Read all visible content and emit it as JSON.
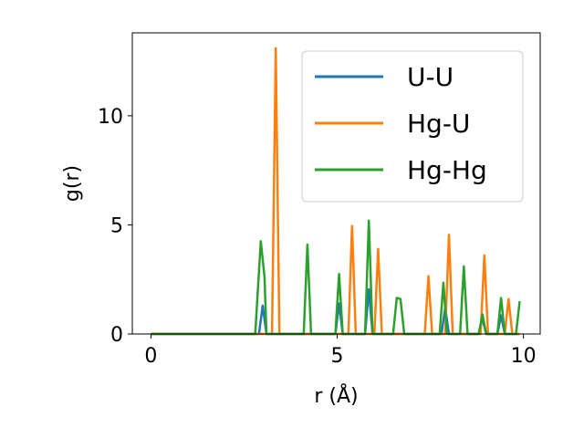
{
  "chart_data": {
    "type": "line",
    "title": "",
    "xlabel": "r (Å)",
    "ylabel": "g(r)",
    "xlim": [
      -0.5,
      10.45
    ],
    "ylim": [
      0,
      13.8
    ],
    "xticks": [
      0,
      5,
      10
    ],
    "yticks": [
      0,
      5,
      10
    ],
    "xtick_labels": [
      "0",
      "5",
      "10"
    ],
    "ytick_labels": [
      "0",
      "5",
      "10"
    ],
    "grid": false,
    "legend_position": "top-right",
    "series": [
      {
        "name": "U-U",
        "color": "#1f77b4",
        "x": [
          0,
          2.9,
          3.0,
          3.1,
          4.95,
          5.05,
          5.15,
          5.75,
          5.85,
          5.95,
          7.8,
          7.9,
          8.0,
          8.8,
          8.9,
          9.0,
          9.3,
          9.4,
          9.5,
          9.9
        ],
        "y": [
          0,
          0,
          1.3,
          0,
          0,
          1.4,
          0,
          0,
          2.05,
          0,
          0,
          1.2,
          0,
          0,
          0.7,
          0,
          0,
          0.85,
          0,
          0
        ]
      },
      {
        "name": "Hg-U",
        "color": "#ff7f0e",
        "x": [
          0,
          3.25,
          3.35,
          3.45,
          5.3,
          5.4,
          5.5,
          6.0,
          6.1,
          6.2,
          7.35,
          7.45,
          7.55,
          7.9,
          8.0,
          8.1,
          8.85,
          8.95,
          9.05,
          9.5,
          9.6,
          9.7,
          9.9
        ],
        "y": [
          0,
          0,
          13.1,
          0,
          0,
          4.95,
          0,
          0,
          3.9,
          0,
          0,
          2.65,
          0,
          0,
          4.55,
          0,
          0,
          3.6,
          0,
          0,
          1.6,
          0,
          0
        ]
      },
      {
        "name": "Hg-Hg",
        "color": "#2ca02c",
        "x": [
          0,
          2.8,
          2.95,
          3.05,
          3.1,
          4.1,
          4.2,
          4.3,
          4.95,
          5.05,
          5.15,
          5.75,
          5.85,
          5.95,
          6.5,
          6.6,
          6.7,
          6.8,
          7.75,
          7.85,
          7.95,
          8.3,
          8.4,
          8.5,
          8.8,
          8.9,
          9.0,
          9.3,
          9.4,
          9.5,
          9.8,
          9.9
        ],
        "y": [
          0,
          0,
          4.25,
          2.6,
          0,
          0,
          4.1,
          0,
          0,
          2.75,
          0,
          0,
          5.2,
          0,
          0,
          1.65,
          1.6,
          0,
          0,
          2.35,
          0,
          0,
          3.1,
          0,
          0,
          0.9,
          0,
          0,
          1.65,
          0,
          0,
          1.5
        ]
      }
    ]
  }
}
